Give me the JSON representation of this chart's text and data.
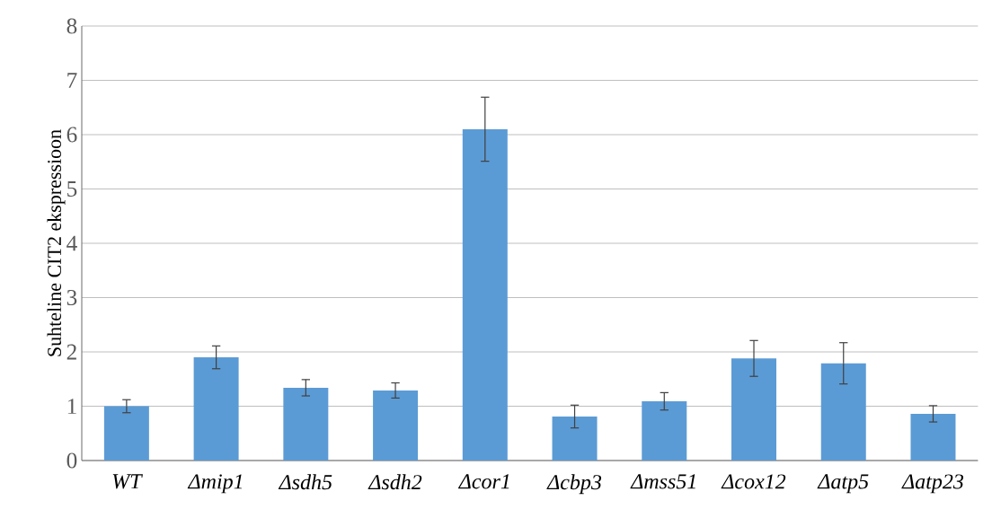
{
  "chart_data": {
    "type": "bar",
    "ylabel": "Suhteline CIT2 ekspressioon",
    "categories": [
      "WT",
      "Δmip1",
      "Δsdh5",
      "Δsdh2",
      "Δcor1",
      "Δcbp3",
      "Δmss51",
      "Δcox12",
      "Δatp5",
      "Δatp23"
    ],
    "values": [
      1.0,
      1.9,
      1.34,
      1.29,
      6.1,
      0.81,
      1.09,
      1.88,
      1.79,
      0.86
    ],
    "errors": [
      0.12,
      0.21,
      0.15,
      0.14,
      0.59,
      0.21,
      0.16,
      0.33,
      0.38,
      0.15
    ],
    "color": "#5b9bd5",
    "ylim": [
      0,
      8
    ],
    "yticks": [
      0,
      1,
      2,
      3,
      4,
      5,
      6,
      7,
      8
    ],
    "grid": "y"
  }
}
